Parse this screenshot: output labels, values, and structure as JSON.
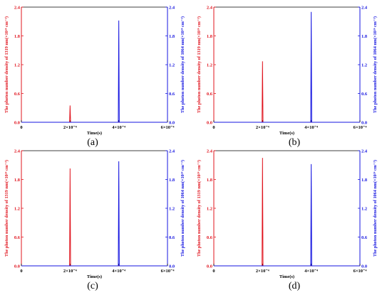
{
  "chart_data": [
    {
      "type": "line",
      "panel_label": "(a)",
      "xlabel": "Time(s)",
      "x_tick_labels": [
        "0",
        "2×10⁻⁴",
        "4×10⁻⁴",
        "6×10⁻⁴"
      ],
      "xlim": [
        0,
        0.0006
      ],
      "ylabel_left": "The photon number density of 1319 nm(×10²⁴ cm⁻³)",
      "ylabel_right": "The photon number density of 1064 nm(×10²⁴ cm⁻³)",
      "ylim_left": [
        0,
        2.4
      ],
      "ylim_right": [
        0,
        2.4
      ],
      "y_tick_labels": [
        "0.0",
        "0.6",
        "1.2",
        "1.8",
        "2.4"
      ],
      "series": [
        {
          "axis": "left",
          "color": "#e0141e",
          "points": [
            [
              0.0,
              0.0
            ],
            [
              0.000198,
              0.0
            ],
            [
              0.0002,
              0.35
            ],
            [
              0.000202,
              0.0
            ],
            [
              0.0006,
              0.0
            ]
          ]
        },
        {
          "axis": "right",
          "color": "#1414e0",
          "points": [
            [
              0.0,
              0.0
            ],
            [
              0.000398,
              0.0
            ],
            [
              0.0004,
              2.12
            ],
            [
              0.000402,
              0.0
            ],
            [
              0.0006,
              0.0
            ]
          ]
        }
      ]
    },
    {
      "type": "line",
      "panel_label": "(b)",
      "xlabel": "Time(s)",
      "x_tick_labels": [
        "0",
        "2×10⁻⁴",
        "4×10⁻⁴",
        "6×10⁻⁴"
      ],
      "xlim": [
        0,
        0.0006
      ],
      "ylabel_left": "The photon number density of 1319 nm(×10²⁴ cm⁻³)",
      "ylabel_right": "The photon number density of 1064 nm(×10²⁴ cm⁻³)",
      "ylim_left": [
        0,
        2.4
      ],
      "ylim_right": [
        0,
        2.4
      ],
      "y_tick_labels": [
        "0.0",
        "0.6",
        "1.2",
        "1.8",
        "2.4"
      ],
      "series": [
        {
          "axis": "left",
          "color": "#e0141e",
          "points": [
            [
              0.0,
              0.0
            ],
            [
              0.000198,
              0.0
            ],
            [
              0.0002,
              1.27
            ],
            [
              0.000202,
              0.0
            ],
            [
              0.0006,
              0.0
            ]
          ]
        },
        {
          "axis": "right",
          "color": "#1414e0",
          "points": [
            [
              0.0,
              0.0
            ],
            [
              0.000398,
              0.0
            ],
            [
              0.0004,
              2.3
            ],
            [
              0.000402,
              0.0
            ],
            [
              0.0006,
              0.0
            ]
          ]
        }
      ]
    },
    {
      "type": "line",
      "panel_label": "(c)",
      "xlabel": "Time(s)",
      "x_tick_labels": [
        "0",
        "2×10⁻⁴",
        "4×10⁻⁴",
        "6×10⁻⁴"
      ],
      "xlim": [
        0,
        0.0006
      ],
      "ylabel_left": "The photon number density of 1319 nm(×10²⁴ cm⁻³)",
      "ylabel_right": "The photon number density of 1064 nm(×10²⁴ cm⁻³)",
      "ylim_left": [
        0,
        2.4
      ],
      "ylim_right": [
        0,
        2.4
      ],
      "y_tick_labels": [
        "0.0",
        "0.6",
        "1.2",
        "1.8",
        "2.4"
      ],
      "series": [
        {
          "axis": "left",
          "color": "#e0141e",
          "points": [
            [
              0.0,
              0.0
            ],
            [
              0.000198,
              0.0
            ],
            [
              0.0002,
              2.03
            ],
            [
              0.000202,
              0.0
            ],
            [
              0.0006,
              0.0
            ]
          ]
        },
        {
          "axis": "right",
          "color": "#1414e0",
          "points": [
            [
              0.0,
              0.0
            ],
            [
              0.000398,
              0.0
            ],
            [
              0.0004,
              2.18
            ],
            [
              0.000402,
              0.0
            ],
            [
              0.0006,
              0.0
            ]
          ]
        }
      ]
    },
    {
      "type": "line",
      "panel_label": "(d)",
      "xlabel": "Time(s)",
      "x_tick_labels": [
        "0",
        "2×10⁻⁴",
        "4×10⁻⁴",
        "6×10⁻⁴"
      ],
      "xlim": [
        0,
        0.0006
      ],
      "ylabel_left": "The photon number density of 1319 nm(×10²⁴ cm⁻³)",
      "ylabel_right": "The photon number density of 1064 nm(×10²⁴ cm⁻³)",
      "ylim_left": [
        0,
        2.4
      ],
      "ylim_right": [
        0,
        2.4
      ],
      "y_tick_labels": [
        "0.0",
        "0.6",
        "1.2",
        "1.8",
        "2.4"
      ],
      "series": [
        {
          "axis": "left",
          "color": "#e0141e",
          "points": [
            [
              0.0,
              0.0
            ],
            [
              0.000198,
              0.0
            ],
            [
              0.0002,
              2.25
            ],
            [
              0.000202,
              0.0
            ],
            [
              0.0006,
              0.0
            ]
          ]
        },
        {
          "axis": "right",
          "color": "#1414e0",
          "points": [
            [
              0.0,
              0.0
            ],
            [
              0.000398,
              0.0
            ],
            [
              0.0004,
              2.12
            ],
            [
              0.000402,
              0.0
            ],
            [
              0.0006,
              0.0
            ]
          ]
        }
      ]
    }
  ]
}
